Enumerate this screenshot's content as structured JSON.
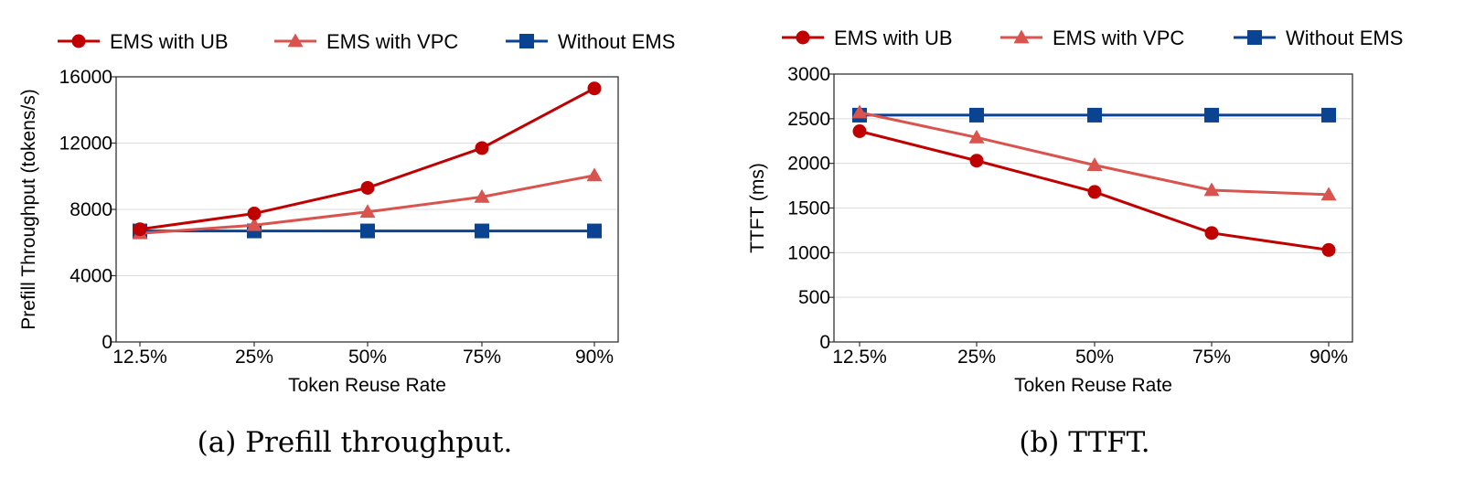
{
  "chart_data": [
    {
      "type": "line",
      "caption": "(a) Prefill throughput.",
      "xlabel": "Token Reuse Rate",
      "ylabel": "Prefill Throughput (tokens/s)",
      "categories": [
        "12.5%",
        "25%",
        "50%",
        "75%",
        "90%"
      ],
      "ylim": [
        0,
        16000
      ],
      "yticks": [
        0,
        4000,
        8000,
        12000,
        16000
      ],
      "grid": true,
      "legend_position": "top",
      "series": [
        {
          "name": "EMS with UB",
          "color": "#c00000",
          "marker": "circle",
          "values": [
            6800,
            7750,
            9300,
            11700,
            15300
          ]
        },
        {
          "name": "EMS with VPC",
          "color": "#d9534f",
          "marker": "triangle",
          "values": [
            6550,
            7050,
            7850,
            8750,
            10050
          ]
        },
        {
          "name": "Without EMS",
          "color": "#0b4393",
          "marker": "square",
          "values": [
            6700,
            6700,
            6700,
            6700,
            6700
          ]
        }
      ]
    },
    {
      "type": "line",
      "caption": "(b) TTFT.",
      "xlabel": "Token Reuse Rate",
      "ylabel": "TTFT (ms)",
      "categories": [
        "12.5%",
        "25%",
        "50%",
        "75%",
        "90%"
      ],
      "ylim": [
        0,
        3000
      ],
      "yticks": [
        0,
        500,
        1000,
        1500,
        2000,
        2500,
        3000
      ],
      "grid": true,
      "legend_position": "top",
      "series": [
        {
          "name": "EMS with UB",
          "color": "#c00000",
          "marker": "circle",
          "values": [
            2360,
            2030,
            1680,
            1220,
            1030
          ]
        },
        {
          "name": "EMS with VPC",
          "color": "#d9534f",
          "marker": "triangle",
          "values": [
            2570,
            2290,
            1980,
            1700,
            1650
          ]
        },
        {
          "name": "Without EMS",
          "color": "#0b4393",
          "marker": "square",
          "values": [
            2540,
            2540,
            2540,
            2540,
            2540
          ]
        }
      ]
    }
  ]
}
